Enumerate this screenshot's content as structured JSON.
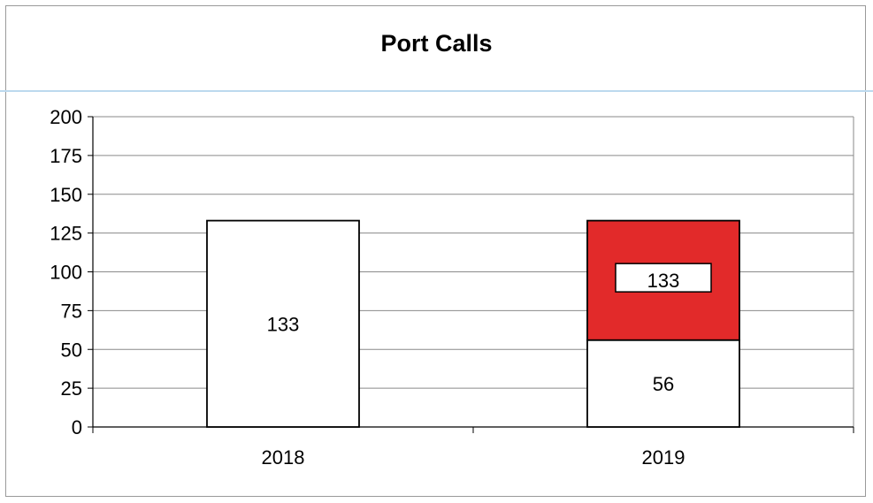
{
  "chart_data": {
    "type": "bar",
    "stacked": true,
    "title": "Port Calls",
    "xlabel": "",
    "ylabel": "",
    "categories": [
      "2018",
      "2019"
    ],
    "series": [
      {
        "values": [
          133,
          56
        ],
        "labels": [
          "133",
          "56"
        ],
        "color": "#ffffff"
      },
      {
        "values": [
          0,
          77
        ],
        "labels": [
          "",
          "133"
        ],
        "color": "#e22a2a"
      }
    ],
    "ylim": [
      0,
      200
    ],
    "yticks": [
      "0",
      "25",
      "50",
      "75",
      "100",
      "125",
      "150",
      "175",
      "200"
    ],
    "grid": true,
    "legend": "none"
  }
}
